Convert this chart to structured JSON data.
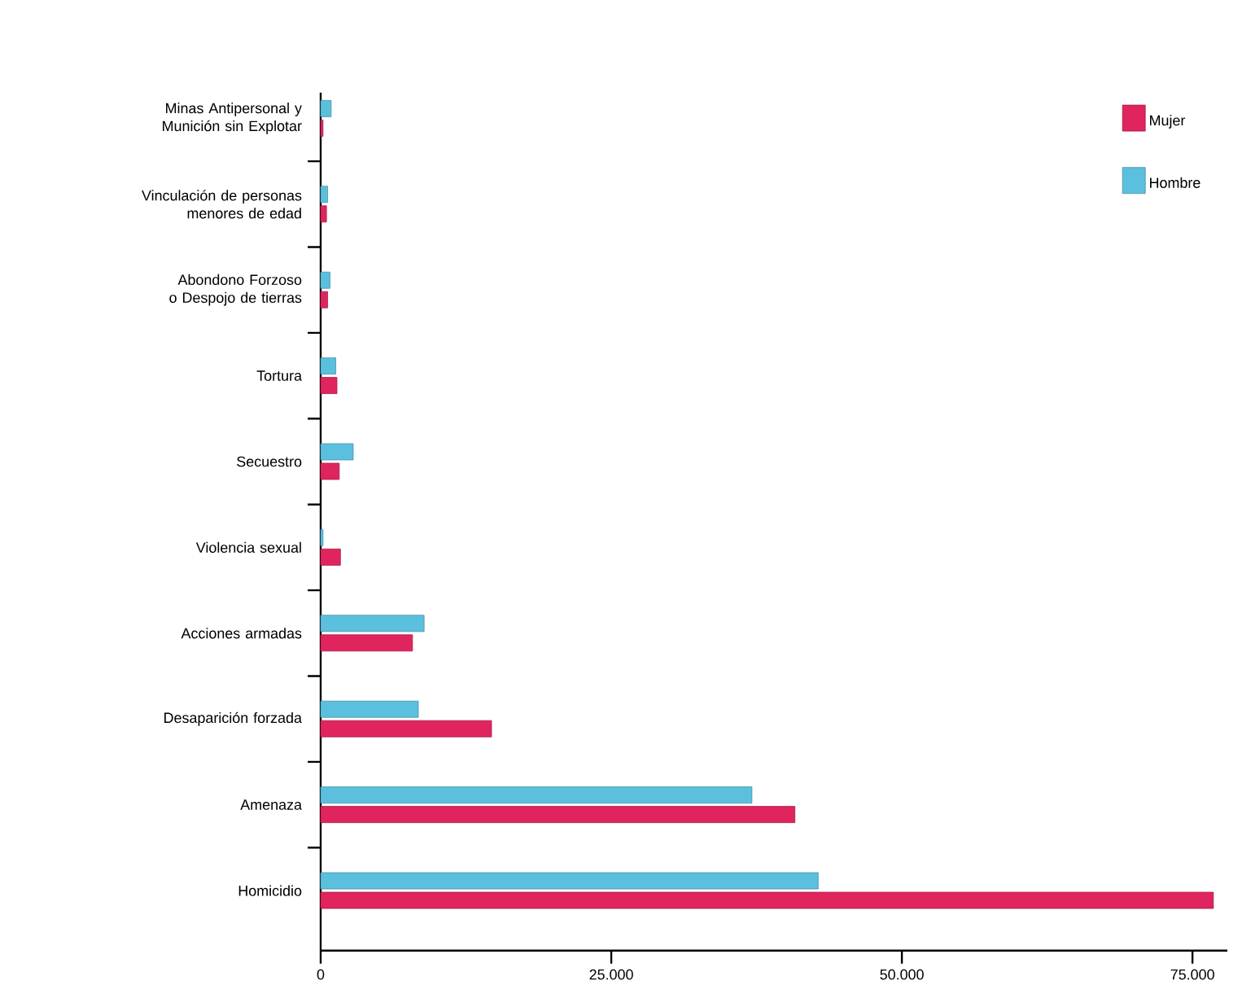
{
  "chart_data": {
    "type": "bar",
    "orientation": "horizontal",
    "categories": [
      "Minas Antipersonal y Munición sin Explotar",
      "Vinculación de personas menores de edad",
      "Abondono Forzoso o Despojo de tierras",
      "Tortura",
      "Secuestro",
      "Violencia sexual",
      "Acciones armadas",
      "Desaparición forzada",
      "Amenaza",
      "Homicidio"
    ],
    "series": [
      {
        "name": "Mujer",
        "color": "#e0245e",
        "values": [
          200,
          500,
          600,
          1400,
          1600,
          1700,
          7900,
          14700,
          40800,
          76800
        ]
      },
      {
        "name": "Hombre",
        "color": "#5bc0de",
        "values": [
          900,
          600,
          800,
          1300,
          2800,
          200,
          8900,
          8400,
          37100,
          42800
        ]
      }
    ],
    "xlim": [
      0,
      78000
    ],
    "xticks": [
      0,
      {
        "value": 25000,
        "label": "25.000"
      },
      {
        "value": 50000,
        "label": "50.000"
      },
      {
        "value": 75000,
        "label": "75.000"
      }
    ],
    "legend": "top right"
  }
}
